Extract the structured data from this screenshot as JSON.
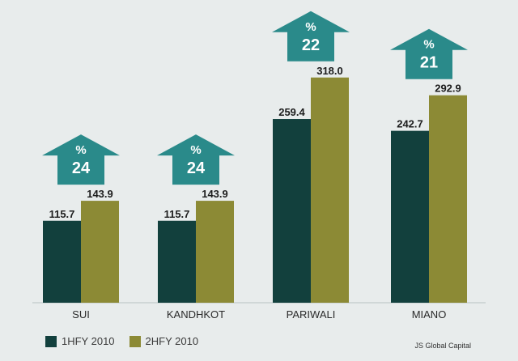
{
  "chart_data": {
    "type": "bar",
    "categories": [
      "SUI",
      "KANDHKOT",
      "PARIWALI",
      "MIANO"
    ],
    "series": [
      {
        "name": "1HFY 2010",
        "values": [
          115.7,
          115.7,
          259.4,
          242.7
        ],
        "labels": [
          "115.7",
          "115.7",
          "259.4",
          "242.7"
        ]
      },
      {
        "name": "2HFY 2010",
        "values": [
          143.9,
          143.9,
          318.0,
          292.9
        ],
        "labels": [
          "143.9",
          "143.9",
          "318.0",
          "292.9"
        ]
      }
    ],
    "growth_badges": [
      {
        "symbol": "%",
        "value": "24"
      },
      {
        "symbol": "%",
        "value": "24"
      },
      {
        "symbol": "%",
        "value": "22"
      },
      {
        "symbol": "%",
        "value": "21"
      }
    ],
    "ylim": [
      0,
      320
    ],
    "grid": false,
    "legend_position": "bottom-left"
  },
  "colors": {
    "series1": "#12403d",
    "series2": "#8c8a35",
    "badge": "#2a8a8a",
    "background": "#e8ecec"
  },
  "legend": {
    "series1_label": "1HFY 2010",
    "series2_label": "2HFY 2010"
  },
  "source": "JS Global Capital"
}
